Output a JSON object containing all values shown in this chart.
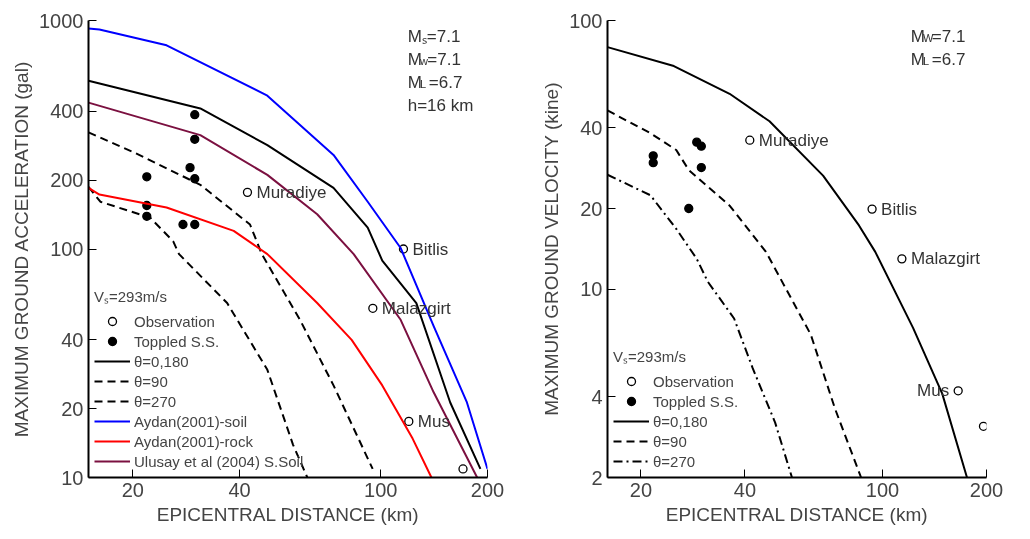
{
  "chart_data": [
    {
      "type": "line",
      "xlabel": "EPICENTRAL DISTANCE (km)",
      "ylabel": "MAXIMUM GROUND ACCELERATION (gal)",
      "log": "xy",
      "xlim": [
        15,
        200
      ],
      "ylim": [
        10,
        1000
      ],
      "xticks": [
        20,
        40,
        100,
        200
      ],
      "yticks": [
        10,
        20,
        40,
        100,
        200,
        400,
        1000
      ],
      "grid": false,
      "legend": "bottom left",
      "legend_title": "Vₛ=293m/s",
      "annotations": [
        "Mₛ=7.1",
        "M$_{w}$=7.1",
        "M$_{L}$=6.7",
        "h=16 km",
        {
          "text": "Muradiye",
          "x": 42.1,
          "y": 177
        },
        {
          "text": "Bitlis",
          "x": 115.9,
          "y": 100
        },
        {
          "text": "Malazgirt",
          "x": 95,
          "y": 55
        },
        {
          "text": "Mus",
          "x": 120,
          "y": 17.6
        }
      ],
      "series": [
        {
          "name": "Observation",
          "type": "scatter",
          "marker": "circle",
          "color": "#000000",
          "x": [
            42.1,
            115.9,
            95,
            120,
            170.6
          ],
          "values": [
            177,
            100,
            55,
            17.6,
            10.9
          ]
        },
        {
          "name": "Toppled S.S.",
          "type": "scatter",
          "marker": "circle",
          "color": "#000000",
          "x": [
            29.9,
            29.9,
            29.0,
            29.9,
            21.9,
            21.9,
            21.9,
            27.7,
            29.9
          ],
          "values": [
            387,
            302,
            227,
            203,
            207,
            155,
            139,
            128,
            128
          ]
        },
        {
          "name": "θ=0,180",
          "line_style": "solid",
          "color": "#000000",
          "x": [
            15,
            31.0,
            47.9,
            73.6,
            91.9,
            101,
            126,
            157,
            191
          ],
          "values": [
            545,
            412,
            285,
            185,
            124,
            89,
            58,
            21.3,
            10.9
          ]
        },
        {
          "name": "θ=90",
          "line_style": "dashed",
          "color": "#000000",
          "x": [
            15,
            20,
            31.0,
            42.8,
            46.2,
            59.2,
            73.6,
            94.9
          ],
          "values": [
            324,
            266,
            191,
            128,
            95,
            49,
            25.3,
            10.9
          ]
        },
        {
          "name": "θ=270",
          "line_style": "dashed",
          "color": "#000000",
          "x": [
            15,
            16.2,
            22.4,
            26.0,
            27.0,
            36.9,
            47.9,
            56.6,
            62.1
          ],
          "values": [
            187,
            161,
            137,
            108,
            95,
            58,
            29.6,
            13.9,
            10
          ]
        },
        {
          "name": "Aydan(2001)-soil",
          "line_style": "solid",
          "color": "#0000ff",
          "x": [
            15,
            16.1,
            24.9,
            47.9,
            73.6,
            91.9,
            113.8,
            141,
            175,
            200
          ],
          "values": [
            923,
            914,
            779,
            469,
            258,
            161,
            101,
            46,
            21.3,
            10.9
          ]
        },
        {
          "name": "Aydan(2001)-rock",
          "line_style": "solid",
          "color": "#ff0000",
          "x": [
            15,
            16.1,
            24.9,
            38.5,
            47.9,
            66.2,
            82.8,
            101,
            123,
            139
          ],
          "values": [
            185,
            173,
            152,
            120,
            95,
            58,
            40,
            25.3,
            14.8,
            10
          ]
        },
        {
          "name": "Ulusay et al (2004) S.Soil",
          "line_style": "solid",
          "color": "#7b1040",
          "x": [
            15,
            31.0,
            47.9,
            66.2,
            83.9,
            113.8,
            141,
            187
          ],
          "values": [
            437,
            315,
            211,
            142,
            95,
            49,
            23.6,
            10
          ]
        }
      ]
    },
    {
      "type": "line",
      "xlabel": "EPICENTRAL DISTANCE (km)",
      "ylabel": "MAXIMUM GROUND VELOCITY (kine)",
      "log": "xy",
      "xlim": [
        16,
        200
      ],
      "ylim": [
        2,
        100
      ],
      "xticks": [
        20,
        40,
        100,
        200
      ],
      "yticks": [
        2,
        4,
        10,
        20,
        40,
        100
      ],
      "grid": false,
      "legend": "bottom left",
      "legend_title": "Vₛ=293m/s",
      "annotations": [
        "M$_{W}$=7.1",
        "M$_{L}$=6.7",
        {
          "text": "Muradiye",
          "x": 41.3,
          "y": 35.9
        },
        {
          "text": "Bitlis",
          "x": 93.3,
          "y": 19.9
        },
        {
          "text": "Malazgirt",
          "x": 113.8,
          "y": 13.0
        },
        {
          "text": "Mus",
          "x": 165.6,
          "y": 4.2
        }
      ],
      "series": [
        {
          "name": "Observation",
          "type": "scatter",
          "marker": "circle",
          "color": "#000000",
          "x": [
            41.3,
            93.3,
            113.8,
            165.6,
            196
          ],
          "values": [
            35.9,
            19.9,
            13.0,
            4.2,
            3.1
          ]
        },
        {
          "name": "Toppled S.S.",
          "type": "scatter",
          "marker": "circle",
          "color": "#000000",
          "x": [
            21.7,
            21.7,
            29.0,
            29.9,
            29.9,
            27.5
          ],
          "values": [
            31.4,
            29.6,
            35.3,
            34.1,
            28.4,
            20.0
          ]
        },
        {
          "name": "θ=0,180",
          "line_style": "solid",
          "color": "#000000",
          "x": [
            16,
            24.9,
            36.1,
            47.1,
            67.3,
            85.5,
            95.3,
            122.6,
            148.9,
            175.6
          ],
          "values": [
            79.6,
            67.7,
            53.4,
            42.2,
            26.5,
            17.3,
            13.8,
            7.2,
            4.1,
            2.0
          ]
        },
        {
          "name": "θ=90",
          "line_style": "dashed",
          "color": "#000000",
          "x": [
            16,
            21.3,
            25.3,
            27.5,
            36.1,
            46.0,
            62.0,
            72.9,
            86.7
          ],
          "values": [
            46.3,
            38.1,
            33.0,
            27.8,
            20.5,
            13.8,
            6.8,
            3.6,
            2.0
          ]
        },
        {
          "name": "θ=270",
          "line_style": "dashdot",
          "color": "#000000",
          "x": [
            16,
            21.3,
            25.3,
            29.0,
            31.2,
            37.2,
            42.1,
            48.9,
            54.7
          ],
          "values": [
            26.7,
            22.4,
            16.8,
            13.0,
            10.7,
            7.8,
            5.1,
            3.2,
            2.0
          ]
        }
      ]
    }
  ]
}
